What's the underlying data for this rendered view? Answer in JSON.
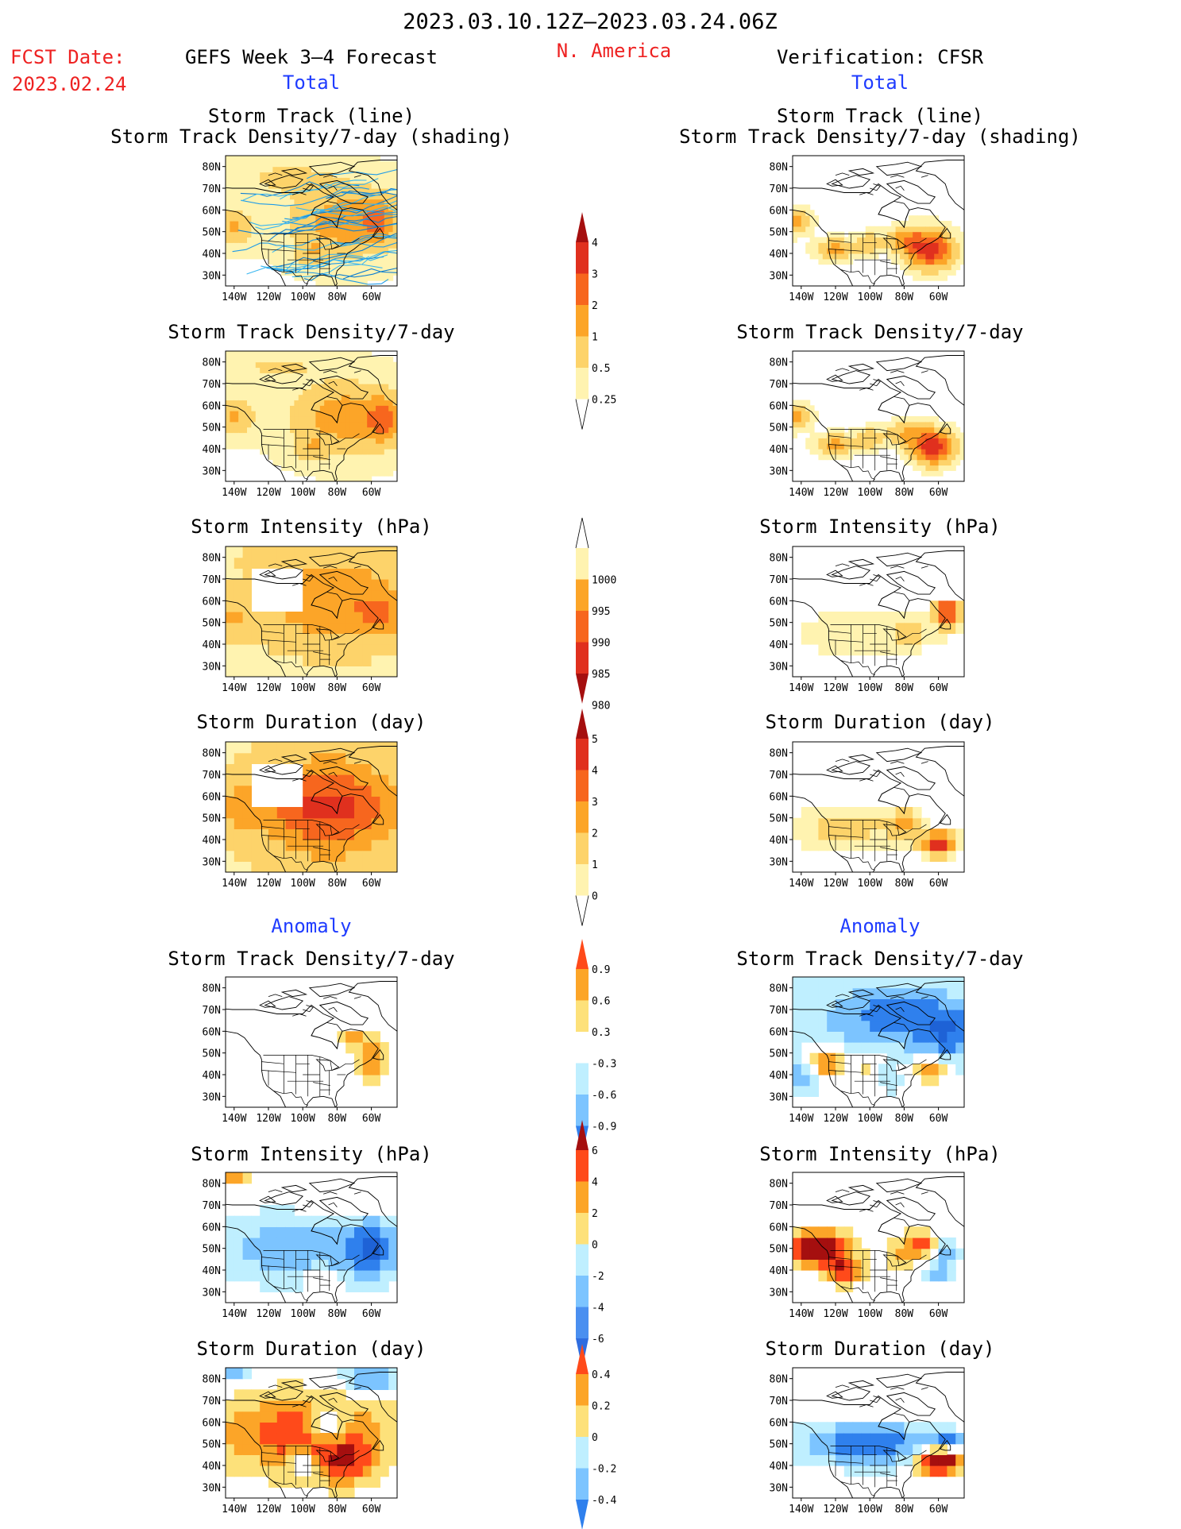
{
  "header": {
    "period": "2023.03.10.12Z–2023.03.24.06Z",
    "fcst_label": "FCST Date:",
    "fcst_date": "2023.02.24",
    "model": "GEFS Week 3–4 Forecast",
    "region": "N. America",
    "verification": "Verification: CFSR",
    "total_left": "Total",
    "total_right": "Total",
    "anomaly_left": "Anomaly",
    "anomaly_right": "Anomaly"
  },
  "panel_titles": {
    "track_line": "Storm Track (line)",
    "track_shading": "Storm Track Density/7-day (shading)",
    "density": "Storm Track Density/7-day",
    "intensity": "Storm Intensity (hPa)",
    "duration": "Storm Duration (day)"
  },
  "axes": {
    "lat_ticks": [
      "80N",
      "70N",
      "60N",
      "50N",
      "40N",
      "30N"
    ],
    "lon_ticks": [
      "140W",
      "120W",
      "100W",
      "80W",
      "60W"
    ]
  },
  "colorbars": {
    "density_total": {
      "labels": [
        "4",
        "3",
        "2",
        "1",
        "0.5",
        "0.25"
      ],
      "colors": [
        "#a50f0f",
        "#e0301e",
        "#f7661e",
        "#fca528",
        "#fdd36a",
        "#fff3b0"
      ]
    },
    "intensity_total": {
      "labels": [
        "1000",
        "995",
        "990",
        "985",
        "980"
      ],
      "colors": [
        "#fff3b0",
        "#fca528",
        "#f7661e",
        "#e0301e",
        "#a50f0f"
      ]
    },
    "duration_total": {
      "labels": [
        "5",
        "4",
        "3",
        "2",
        "1",
        "0"
      ],
      "colors": [
        "#a50f0f",
        "#e0301e",
        "#f7661e",
        "#fca528",
        "#fdd36a",
        "#fff3b0"
      ]
    },
    "density_anom": {
      "labels": [
        "0.9",
        "0.6",
        "0.3",
        "-0.3",
        "-0.6",
        "-0.9"
      ],
      "colors": [
        "#ff4a1a",
        "#fca528",
        "#fde17a",
        "#ffffff",
        "#bfefff",
        "#7cc4ff",
        "#2f80ed"
      ]
    },
    "intensity_anom": {
      "labels": [
        "6",
        "4",
        "2",
        "0",
        "-2",
        "-4",
        "-6"
      ],
      "colors": [
        "#a50f0f",
        "#ff4a1a",
        "#fca528",
        "#fde17a",
        "#bfefff",
        "#7cc4ff",
        "#4a8ff0",
        "#2f6de0"
      ]
    },
    "duration_anom": {
      "labels": [
        "0.4",
        "0.2",
        "0",
        "-0.2",
        "-0.4"
      ],
      "colors": [
        "#ff4a1a",
        "#fca528",
        "#fde17a",
        "#bfefff",
        "#7cc4ff",
        "#2f80ed"
      ]
    }
  },
  "chart_data": [
    {
      "type": "heatmap",
      "panel": "Forecast total storm track (line) with density shading",
      "dominant_values": "0.5–2 across Canada/N. Atlantic, up to 3–4 near 55N 60W"
    },
    {
      "type": "heatmap",
      "panel": "Verification total storm track (line) with density shading",
      "dominant_values": "1–3 over Gulf of Alaska, western US and NE US/Atlantic, up to 4 near 40N 65W"
    },
    {
      "type": "heatmap",
      "panel": "Forecast total density",
      "dominant_values": "0.5–2, maximum 3 east of Labrador"
    },
    {
      "type": "heatmap",
      "panel": "Verification total density",
      "dominant_values": "1–3, maximum 4 near 40N 65W"
    },
    {
      "type": "heatmap",
      "panel": "Forecast total intensity",
      "dominant_values": "990–995 hPa widely, 985 near 55N 60W"
    },
    {
      "type": "heatmap",
      "panel": "Verification total intensity",
      "dominant_values": "1000 hPa over western US, 985–980 near 55N 55W"
    },
    {
      "type": "heatmap",
      "panel": "Forecast total duration",
      "dominant_values": "2–4 days, 4 over eastern North America"
    },
    {
      "type": "heatmap",
      "panel": "Verification total duration",
      "dominant_values": "1–3 days, 5 near 38N 60W"
    },
    {
      "type": "heatmap",
      "panel": "Forecast anomaly density",
      "dominant_values": "0.3–0.6 east of 75W"
    },
    {
      "type": "heatmap",
      "panel": "Verification anomaly density",
      "dominant_values": "-0.9 to -0.6 over Canada, +0.6 to +0.9 near 45N 120W and 40N 65W"
    },
    {
      "type": "heatmap",
      "panel": "Forecast anomaly intensity",
      "dominant_values": "-2 to -4 hPa across 40–60N, +2 to +4 in far north"
    },
    {
      "type": "heatmap",
      "panel": "Verification anomaly intensity",
      "dominant_values": "+4 to +6 hPa over NW, -2 to -4 near 45N 60W"
    },
    {
      "type": "heatmap",
      "panel": "Forecast anomaly duration",
      "dominant_values": "+0.2 to +0.4 days widely, -0.4 over Hudson Bay"
    },
    {
      "type": "heatmap",
      "panel": "Verification anomaly duration",
      "dominant_values": "-0.4 days widely, +0.4 near 40N 65W"
    }
  ]
}
